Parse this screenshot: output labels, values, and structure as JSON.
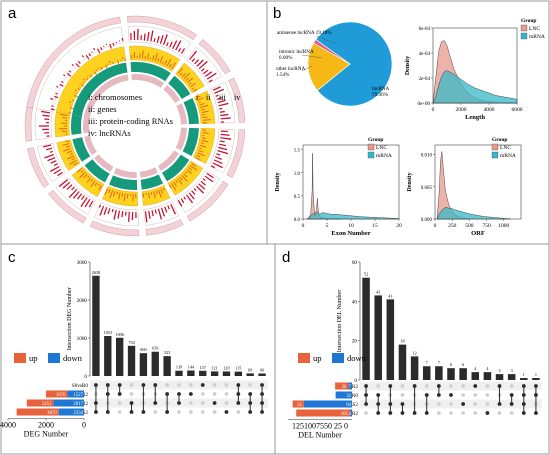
{
  "panel_labels": [
    "a",
    "b",
    "c",
    "d"
  ],
  "circos": {
    "legend": [
      "i: chromosomes",
      "ii: genes",
      "iii: protein-coding RNAs",
      "iv: lncRNAs"
    ],
    "track_marks": [
      "i",
      "ii",
      "iii",
      "iv"
    ],
    "colors": {
      "chrom": "#c8102e",
      "genes": "#ffd21f",
      "pcrna": "#159b7c",
      "lnc": "#e6b9c0"
    }
  },
  "chart_data": [
    {
      "id": "b-pie",
      "type": "pie",
      "slices": [
        {
          "label": "lncRNA\n79.36%",
          "value": 79.36,
          "color": "#1f9bd7"
        },
        {
          "label": "antisense lncRNA 19.18%",
          "value": 19.18,
          "color": "#f6b817"
        },
        {
          "label": "intronic lncRNA\n0.00%",
          "value": 0.0,
          "color": "#6b4fa0"
        },
        {
          "label": "other lncRNA\n1.54%",
          "value": 1.54,
          "color": "#e55c8a"
        }
      ]
    },
    {
      "id": "b-length",
      "type": "area",
      "xlabel": "Length",
      "ylabel": "Density",
      "xlim": [
        0,
        6000
      ],
      "ylim": [
        0,
        0.0006
      ],
      "xticks": [
        "0",
        "2000",
        "4000",
        "6000"
      ],
      "yticks": [
        "0e+00",
        "2e-04",
        "4e-04",
        "6e-04"
      ],
      "legend": {
        "title": "Group",
        "entries": [
          "LNC",
          "mRNA"
        ],
        "position": "right"
      },
      "series": [
        {
          "name": "LNC",
          "color": "#e79a8c",
          "x": [
            0,
            200,
            400,
            600,
            800,
            1000,
            1200,
            1500,
            2000,
            2500,
            3000,
            3500,
            4000,
            5000,
            6000
          ],
          "y": [
            0,
            0.0002,
            0.00041,
            0.00049,
            0.0005,
            0.00046,
            0.00038,
            0.00027,
            0.00015,
            8e-05,
            4e-05,
            2e-05,
            1e-05,
            0,
            0
          ]
        },
        {
          "name": "mRNA",
          "color": "#37b8c8",
          "x": [
            0,
            200,
            400,
            600,
            800,
            1000,
            1500,
            2000,
            2500,
            3000,
            3500,
            4000,
            4500,
            5000,
            5500,
            6000
          ],
          "y": [
            0,
            5e-05,
            0.00014,
            0.00021,
            0.00025,
            0.00026,
            0.00023,
            0.00019,
            0.00015,
            0.00012,
            0.0001,
            8e-05,
            6e-05,
            5e-05,
            4e-05,
            3e-05
          ]
        }
      ]
    },
    {
      "id": "b-exon",
      "type": "area",
      "xlabel": "Exon Number",
      "ylabel": "Density",
      "xlim": [
        0,
        20
      ],
      "ylim": [
        0,
        1.6
      ],
      "xticks": [
        "0",
        "5",
        "10",
        "15",
        "20"
      ],
      "yticks": [
        "0.0",
        "0.5",
        "1.0",
        "1.5"
      ],
      "legend": {
        "title": "Group",
        "entries": [
          "LNC",
          "mRNA"
        ],
        "position": "top-right"
      },
      "series": [
        {
          "name": "LNC",
          "color": "#e79a8c",
          "x": [
            1,
            1.6,
            1.9,
            2.0,
            2.1,
            2.4,
            2.8,
            3.0,
            3.2,
            3.6,
            4.5,
            6,
            8
          ],
          "y": [
            0,
            0.1,
            0.6,
            1.42,
            0.6,
            0.1,
            0.2,
            0.45,
            0.15,
            0.04,
            0.02,
            0.01,
            0
          ]
        },
        {
          "name": "mRNA",
          "color": "#37b8c8",
          "x": [
            0.8,
            1.5,
            2.0,
            2.5,
            3.0,
            3.5,
            4,
            5,
            6,
            7,
            8,
            9,
            10,
            12,
            14,
            16,
            18,
            20
          ],
          "y": [
            0,
            0.05,
            0.12,
            0.08,
            0.16,
            0.1,
            0.14,
            0.12,
            0.1,
            0.1,
            0.09,
            0.08,
            0.07,
            0.05,
            0.04,
            0.03,
            0.02,
            0.01
          ]
        }
      ]
    },
    {
      "id": "b-orf",
      "type": "area",
      "xlabel": "ORF",
      "ylabel": "Density",
      "xlim": [
        0,
        1250
      ],
      "ylim": [
        0,
        0.0115
      ],
      "xticks": [
        "0",
        "250",
        "500",
        "750",
        "1000"
      ],
      "yticks": [
        "0.000",
        "0.005",
        "0.010"
      ],
      "legend": {
        "title": "Group",
        "entries": [
          "LNC",
          "mRNA"
        ],
        "position": "top-right"
      },
      "series": [
        {
          "name": "LNC",
          "color": "#e79a8c",
          "x": [
            30,
            60,
            80,
            100,
            120,
            150,
            200,
            260,
            330,
            420,
            500
          ],
          "y": [
            0,
            0.004,
            0.009,
            0.0105,
            0.008,
            0.0045,
            0.0022,
            0.001,
            0.0004,
            0.0001,
            0
          ]
        },
        {
          "name": "mRNA",
          "color": "#37b8c8",
          "x": [
            30,
            60,
            100,
            150,
            200,
            250,
            300,
            400,
            500,
            600,
            700,
            800,
            900,
            1000,
            1100
          ],
          "y": [
            0,
            0.0008,
            0.0014,
            0.0018,
            0.0017,
            0.0016,
            0.0014,
            0.0011,
            0.0008,
            0.0006,
            0.0004,
            0.0003,
            0.0002,
            0.0001,
            0
          ]
        }
      ]
    },
    {
      "id": "c-upset",
      "type": "bar",
      "ylabel": "Intersection DEG Number",
      "xlabel": "DEG Number",
      "ylim": [
        0,
        3000
      ],
      "yticks": [
        "0",
        "1000",
        "2000",
        "3000"
      ],
      "values": [
        2638,
        1053,
        1006,
        794,
        600,
        639,
        523,
        139,
        144,
        137,
        121,
        120,
        115,
        69,
        66
      ],
      "sets": [
        "S0vsR0",
        "R0vsR2",
        "S2vsR2",
        "S0vsS2"
      ],
      "set_values": {
        "up": [
          8,
          1976,
          2451,
          3870
        ],
        "down": [
          0,
          1527,
          2817,
          2334
        ]
      },
      "set_labels": {
        "up": [
          "",
          "1976",
          "2451",
          "3870"
        ],
        "down": [
          "",
          "1527",
          "2817",
          "2334"
        ]
      },
      "set_axis": [
        "4000",
        "2000",
        "0"
      ],
      "matrix": [
        [
          0,
          2,
          3
        ],
        [
          0,
          1,
          3
        ],
        [
          0,
          1
        ],
        [
          2,
          3
        ],
        [
          0,
          3
        ],
        [
          0,
          2
        ],
        [
          1,
          3
        ],
        [
          1,
          2
        ],
        [
          1
        ],
        [
          0
        ],
        [
          2
        ],
        [
          3
        ],
        [
          0,
          1,
          2
        ],
        [
          1,
          2,
          3
        ],
        [
          0,
          1,
          2,
          3
        ]
      ],
      "legend": [
        {
          "label": "up",
          "color": "#e8623c"
        },
        {
          "label": "down",
          "color": "#1f77d4"
        }
      ]
    },
    {
      "id": "d-upset",
      "type": "bar",
      "ylabel": "Intersection DEL Number",
      "xlabel": "DEL Number",
      "ylim": [
        0,
        60
      ],
      "yticks": [
        "0",
        "20",
        "40",
        "60"
      ],
      "values": [
        52,
        43,
        41,
        18,
        12,
        7,
        7,
        6,
        6,
        4,
        4,
        3,
        3,
        1,
        1
      ],
      "sets": [
        "R0vsR2",
        "S0vsR0",
        "S0vsS2",
        "S2vsR2"
      ],
      "set_values": {
        "up": [
          26,
          0,
          22,
          105
        ],
        "down": [
          7,
          32,
          94,
          4
        ]
      },
      "set_labels": {
        "up": [
          "26",
          "",
          "22",
          "105"
        ],
        "down": [
          "7",
          "32",
          "94",
          "4"
        ]
      },
      "set_axis": [
        "125",
        "100",
        "75",
        "50",
        "25",
        "0"
      ],
      "set_axis_text": "1251007550 25  0",
      "matrix": [
        [
          0,
          1,
          2
        ],
        [
          1,
          2,
          3
        ],
        [
          0,
          2,
          3
        ],
        [
          2,
          3
        ],
        [
          0,
          3
        ],
        [
          1,
          3
        ],
        [
          0,
          1
        ],
        [
          1
        ],
        [
          2
        ],
        [
          0
        ],
        [
          3
        ],
        [
          0,
          2
        ],
        [
          1,
          2
        ],
        [
          0,
          1,
          2,
          3
        ],
        [
          0,
          1,
          3
        ]
      ],
      "legend": [
        {
          "label": "up",
          "color": "#e8623c"
        },
        {
          "label": "down",
          "color": "#1f77d4"
        }
      ]
    }
  ]
}
